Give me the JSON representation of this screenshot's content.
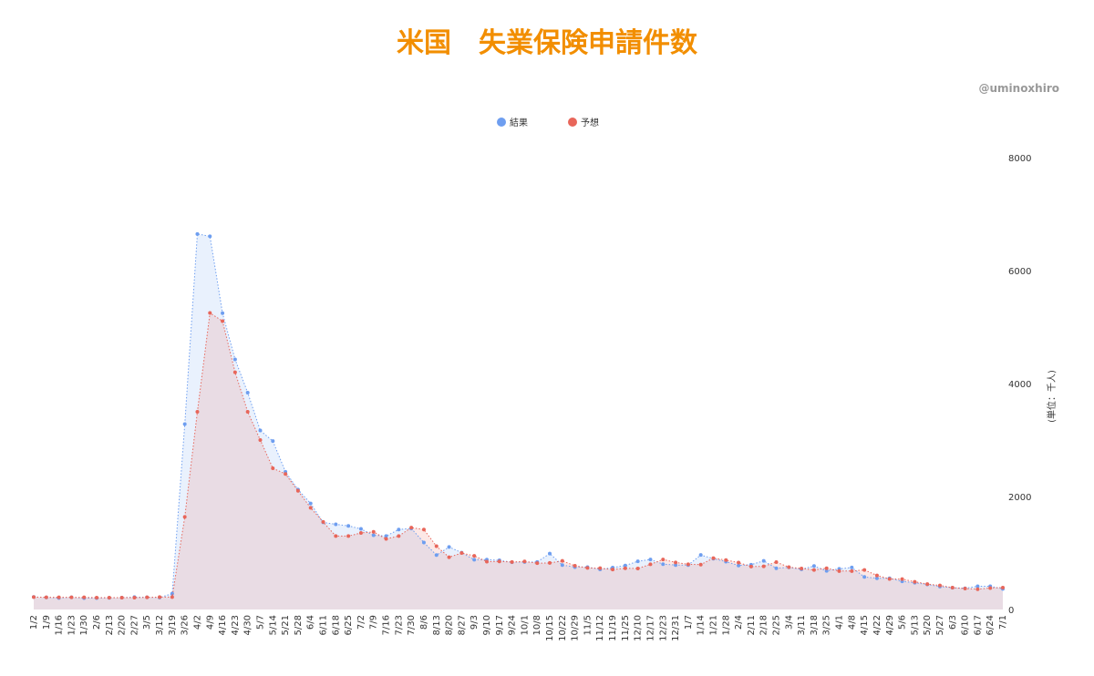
{
  "chart_data": {
    "type": "area-line",
    "title": "米国　失業保険申請件数",
    "credit": "@uminoxhiro",
    "y_label": "(単位：千人)",
    "categories": [
      "1/2",
      "1/9",
      "1/16",
      "1/23",
      "1/30",
      "2/6",
      "2/13",
      "2/20",
      "2/27",
      "3/5",
      "3/12",
      "3/19",
      "3/26",
      "4/2",
      "4/9",
      "4/16",
      "4/23",
      "4/30",
      "5/7",
      "5/14",
      "5/21",
      "5/28",
      "6/4",
      "6/11",
      "6/18",
      "6/25",
      "7/2",
      "7/9",
      "7/16",
      "7/23",
      "7/30",
      "8/6",
      "8/13",
      "8/20",
      "8/27",
      "9/3",
      "9/10",
      "9/17",
      "9/24",
      "10/1",
      "10/8",
      "10/15",
      "10/22",
      "10/29",
      "11/5",
      "11/12",
      "11/19",
      "11/25",
      "12/10",
      "12/17",
      "12/23",
      "12/31",
      "1/7",
      "1/14",
      "1/21",
      "1/28",
      "2/4",
      "2/11",
      "2/18",
      "2/25",
      "3/4",
      "3/11",
      "3/18",
      "3/25",
      "4/1",
      "4/8",
      "4/15",
      "4/22",
      "4/29",
      "5/6",
      "5/13",
      "5/20",
      "5/27",
      "6/3",
      "6/10",
      "6/17",
      "6/24",
      "7/1"
    ],
    "series": [
      {
        "name": "結果",
        "color": "#6e9ef0",
        "values": [
          222,
          214,
          204,
          216,
          202,
          202,
          206,
          210,
          219,
          216,
          211,
          281,
          3283,
          6648,
          6606,
          5245,
          4427,
          3839,
          3169,
          2981,
          2438,
          2123,
          1877,
          1542,
          1508,
          1480,
          1427,
          1314,
          1300,
          1416,
          1434,
          1186,
          963,
          1106,
          1006,
          881,
          884,
          870,
          837,
          840,
          840,
          990,
          787,
          751,
          751,
          709,
          742,
          778,
          853,
          885,
          803,
          787,
          787,
          965,
          900,
          847,
          779,
          793,
          861,
          730,
          745,
          712,
          770,
          684,
          719,
          744,
          576,
          553,
          553,
          498,
          473,
          444,
          406,
          385,
          376,
          412,
          411,
          364
        ]
      },
      {
        "name": "予想",
        "color": "#e8665a",
        "values": [
          220,
          215,
          216,
          215,
          215,
          210,
          210,
          210,
          210,
          215,
          220,
          220,
          1640,
          3500,
          5250,
          5105,
          4200,
          3500,
          3000,
          2500,
          2400,
          2100,
          1800,
          1550,
          1300,
          1300,
          1355,
          1375,
          1250,
          1300,
          1450,
          1415,
          1120,
          925,
          1000,
          950,
          846,
          850,
          840,
          850,
          820,
          825,
          860,
          775,
          735,
          731,
          707,
          730,
          725,
          800,
          885,
          833,
          800,
          795,
          910,
          875,
          830,
          760,
          765,
          838,
          750,
          725,
          700,
          730,
          680,
          680,
          700,
          603,
          540,
          538,
          490,
          450,
          425,
          387,
          370,
          359,
          380,
          388
        ]
      }
    ],
    "ylim": [
      0,
      8000
    ],
    "yticks": [
      0,
      2000,
      4000,
      6000,
      8000
    ],
    "y_axis_side": "right",
    "grid": false,
    "legend": "top"
  }
}
